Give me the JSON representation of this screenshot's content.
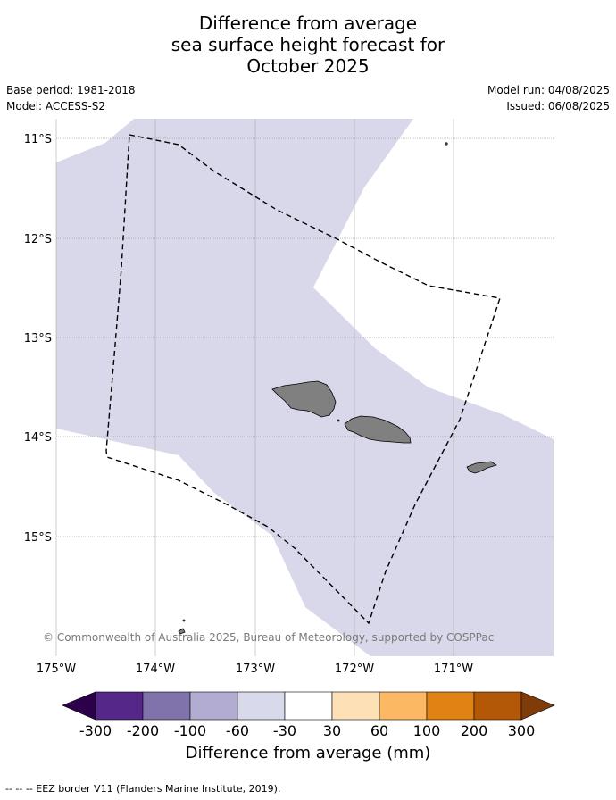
{
  "title": {
    "line1": "Difference from average",
    "line2": "sea surface height forecast for",
    "line3": "October 2025"
  },
  "meta": {
    "base_period": "Base period: 1981-2018",
    "model": "Model: ACCESS-S2",
    "model_run": "Model run: 04/08/2025",
    "issued": "Issued: 06/08/2025"
  },
  "map": {
    "lat_labels": [
      "11°S",
      "12°S",
      "13°S",
      "14°S",
      "15°S"
    ],
    "lon_labels": [
      "175°W",
      "174°W",
      "173°W",
      "172°W",
      "171°W"
    ],
    "copyright": "© Commonwealth of Australia 2025, Bureau of Meteorology, supported by COSPPac",
    "colors": {
      "anomaly_fill": "#d8d8ea",
      "land": "#808080",
      "eez_line": "#000000"
    }
  },
  "colorbar": {
    "title": "Difference from average (mm)",
    "tick_labels": [
      "-300",
      "-200",
      "-100",
      "-60",
      "-30",
      "30",
      "60",
      "100",
      "200",
      "300"
    ],
    "colors": [
      "#2d004b",
      "#542788",
      "#8073ac",
      "#b2abd2",
      "#d8daeb",
      "#ffffff",
      "#fee0b6",
      "#fdb863",
      "#e08214",
      "#b35806",
      "#7f3b08"
    ]
  },
  "legend": {
    "eez_text": "--  --  -- EEZ border V11 (Flanders Marine Institute, 2019)."
  }
}
